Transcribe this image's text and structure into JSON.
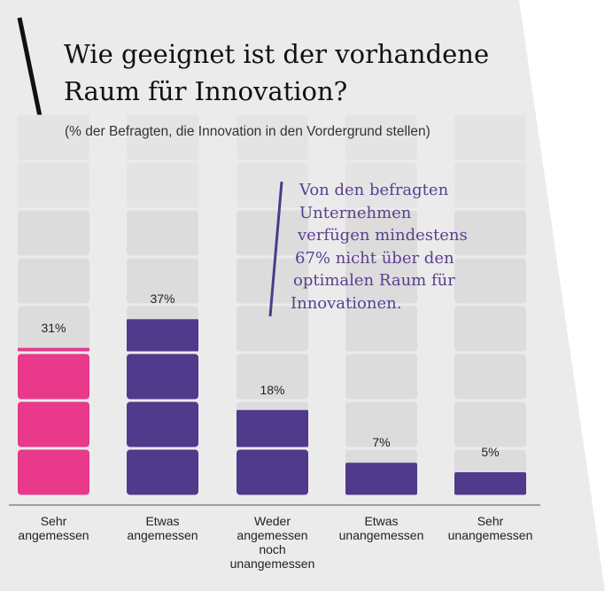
{
  "title": "Wie geeignet ist der vorhandene Raum für Innovation?",
  "subtitle": "(% der Befragten, die Innovation in den Vordergrund stellen)",
  "callout": {
    "lines": [
      "Von den befragten",
      "Unternehmen",
      "verfügen mindestens",
      "67% nicht über den",
      "optimalen Raum für",
      "Innovationen."
    ]
  },
  "colors": {
    "background_panel": "#ebebeb",
    "segment_empty": "#dcdcdc",
    "segment_empty_faded": "#e4e4e4",
    "accent_pink": "#e8398a",
    "accent_purple": "#4f3a8c",
    "callout_text": "#5a3f8f"
  },
  "chart_data": {
    "type": "bar",
    "title": "Wie geeignet ist der vorhandene Raum für Innovation?",
    "subtitle": "(% der Befragten, die Innovation in den Vordergrund stellen)",
    "categories": [
      "Sehr\nangemessen",
      "Etwas\nangemessen",
      "Weder\nangemessen\nnoch\nunangemessen",
      "Etwas\nunangemessen",
      "Sehr\nunangemessen"
    ],
    "values": [
      31,
      37,
      18,
      7,
      5
    ],
    "value_labels": [
      "31%",
      "37%",
      "18%",
      "7%",
      "5%"
    ],
    "bar_colors": [
      "#e8398a",
      "#4f3a8c",
      "#4f3a8c",
      "#4f3a8c",
      "#4f3a8c"
    ],
    "ylim": [
      0,
      75
    ],
    "segment_size": 10,
    "xlabel": "",
    "ylabel": ""
  }
}
